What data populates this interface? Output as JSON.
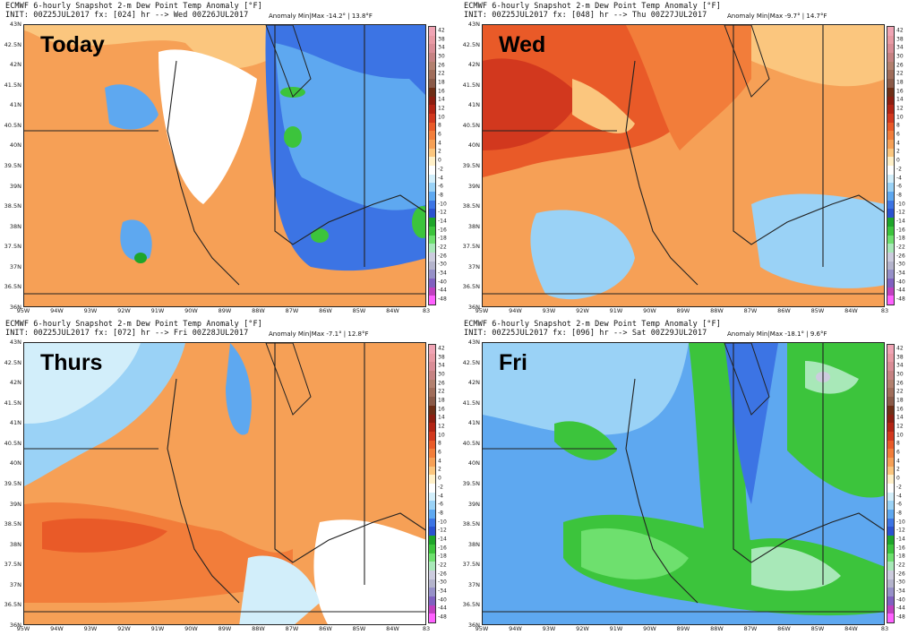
{
  "colorbar": {
    "ticks": [
      "42",
      "38",
      "34",
      "30",
      "26",
      "22",
      "18",
      "16",
      "14",
      "12",
      "10",
      "8",
      "6",
      "4",
      "2",
      "0",
      "-2",
      "-4",
      "-6",
      "-8",
      "-10",
      "-12",
      "-14",
      "-16",
      "-18",
      "-22",
      "-26",
      "-30",
      "-34",
      "-40",
      "-44",
      "-48"
    ],
    "colors": [
      "#f0a4b4",
      "#e89aa4",
      "#d98d96",
      "#c58282",
      "#b2806e",
      "#a06d5a",
      "#8a5a48",
      "#6e2e16",
      "#8c1e10",
      "#b22414",
      "#d2381e",
      "#e95a28",
      "#f27d3a",
      "#f6a056",
      "#fbc67e",
      "#fff0c8",
      "#ffffff",
      "#d2eefa",
      "#9ad2f6",
      "#5ea8f0",
      "#3c74e4",
      "#2a52d0",
      "#1ea52a",
      "#3cc43c",
      "#6ee06e",
      "#a8e8b8",
      "#ccccde",
      "#b4b4cc",
      "#9690c8",
      "#8060c0",
      "#c040c0",
      "#ff60ff"
    ]
  },
  "lat_labels": [
    "43N",
    "42.5N",
    "42N",
    "41.5N",
    "41N",
    "40.5N",
    "40N",
    "39.5N",
    "39N",
    "38.5N",
    "38N",
    "37.5N",
    "37N",
    "36.5N",
    "36N"
  ],
  "lon_labels": [
    "95W",
    "94W",
    "93W",
    "92W",
    "91W",
    "90W",
    "89W",
    "88W",
    "87W",
    "86W",
    "85W",
    "84W",
    "83"
  ],
  "panels": [
    {
      "line1": "ECMWF 6-hourly Snapshot 2-m Dew Point Temp Anomaly [°F]",
      "line2": "INIT: 00Z25JUL2017  fx: [024] hr --> Wed 00Z26JUL2017",
      "anomaly": "Anomaly Min|Max -14.2° | 13.8°F",
      "day": "Today",
      "theme": [
        "#f6a056",
        "#fbc67e",
        "#3c74e4",
        "#5ea8f0"
      ]
    },
    {
      "line1": "ECMWF 6-hourly Snapshot 2-m Dew Point Temp Anomaly [°F]",
      "line2": "INIT: 00Z25JUL2017  fx: [048] hr --> Thu 00Z27JUL2017",
      "anomaly": "Anomaly Min|Max -9.7° | 14.7°F",
      "day": "Wed",
      "theme": [
        "#f27d3a",
        "#f6a056",
        "#9ad2f6",
        "#e95a28"
      ]
    },
    {
      "line1": "ECMWF 6-hourly Snapshot 2-m Dew Point Temp Anomaly [°F]",
      "line2": "INIT: 00Z25JUL2017  fx: [072] hr --> Fri 00Z28JUL2017",
      "anomaly": "Anomaly Min|Max -7.1° | 12.8°F",
      "day": "Thurs",
      "theme": [
        "#f6a056",
        "#f27d3a",
        "#9ad2f6",
        "#d2eefa"
      ]
    },
    {
      "line1": "ECMWF 6-hourly Snapshot 2-m Dew Point Temp Anomaly [°F]",
      "line2": "INIT: 00Z25JUL2017  fx: [096] hr --> Sat 00Z29JUL2017",
      "anomaly": "Anomaly Min|Max -18.1° | 9.6°F",
      "day": "Fri",
      "theme": [
        "#5ea8f0",
        "#3c74e4",
        "#3cc43c",
        "#6ee06e"
      ]
    }
  ]
}
